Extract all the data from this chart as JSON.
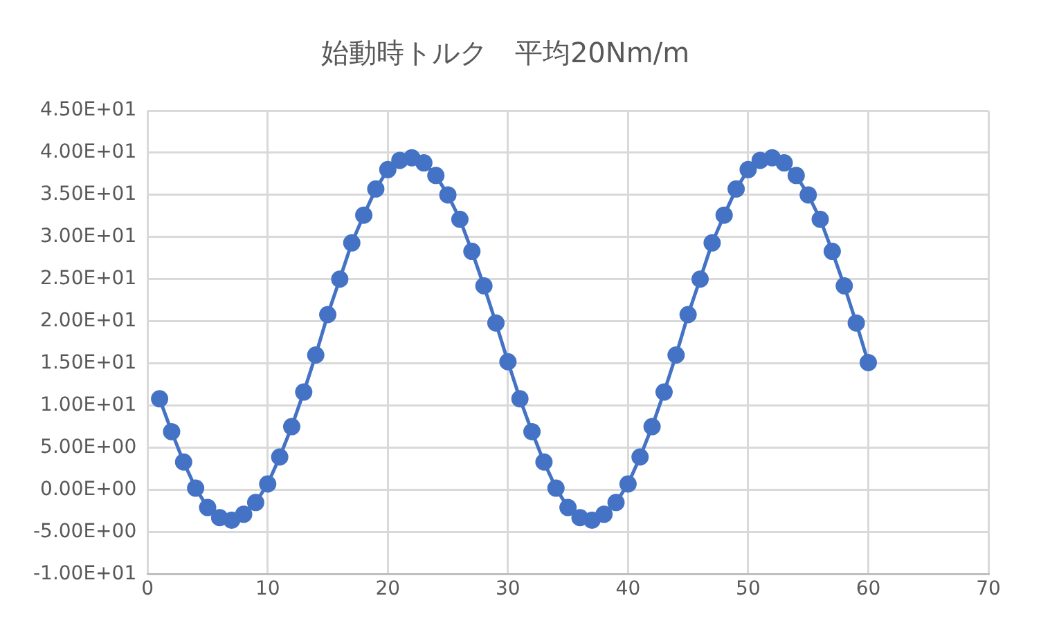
{
  "chart_data": {
    "type": "line",
    "title": "始動時トルク　平均20Nm/m",
    "x": [
      1,
      2,
      3,
      4,
      5,
      6,
      7,
      8,
      9,
      10,
      11,
      12,
      13,
      14,
      15,
      16,
      17,
      18,
      19,
      20,
      21,
      22,
      23,
      24,
      25,
      26,
      27,
      28,
      29,
      30,
      31,
      32,
      33,
      34,
      35,
      36,
      37,
      38,
      39,
      40,
      41,
      42,
      43,
      44,
      45,
      46,
      47,
      48,
      49,
      50,
      51,
      52,
      53,
      54,
      55,
      56,
      57,
      58,
      59,
      60
    ],
    "series": [
      {
        "color": "#4472c4",
        "values": [
          10.8,
          6.9,
          3.3,
          0.2,
          -2.1,
          -3.3,
          -3.6,
          -2.9,
          -1.5,
          0.7,
          3.9,
          7.5,
          11.6,
          16.0,
          20.8,
          25.0,
          29.3,
          32.6,
          35.7,
          38.0,
          39.1,
          39.4,
          38.8,
          37.3,
          35.0,
          32.1,
          28.3,
          24.2,
          19.8,
          15.2,
          10.8,
          6.9,
          3.3,
          0.2,
          -2.1,
          -3.3,
          -3.6,
          -2.9,
          -1.5,
          0.7,
          3.9,
          7.5,
          11.6,
          16.0,
          20.8,
          25.0,
          29.3,
          32.6,
          35.7,
          38.0,
          39.1,
          39.4,
          38.8,
          37.3,
          35.0,
          32.1,
          28.3,
          24.2,
          19.8,
          15.1
        ]
      }
    ],
    "xlim": [
      0,
      70
    ],
    "xticks": [
      0,
      10,
      20,
      30,
      40,
      50,
      60,
      70
    ],
    "ylim": [
      -10,
      45
    ],
    "yticks": [
      {
        "value": -10,
        "label": "-1.00E+01"
      },
      {
        "value": -5,
        "label": "-5.00E+00"
      },
      {
        "value": 0,
        "label": "0.00E+00"
      },
      {
        "value": 5,
        "label": "5.00E+00"
      },
      {
        "value": 10,
        "label": "1.00E+01"
      },
      {
        "value": 15,
        "label": "1.50E+01"
      },
      {
        "value": 20,
        "label": "2.00E+01"
      },
      {
        "value": 25,
        "label": "2.50E+01"
      },
      {
        "value": 30,
        "label": "3.00E+01"
      },
      {
        "value": 35,
        "label": "3.50E+01"
      },
      {
        "value": 40,
        "label": "4.00E+01"
      },
      {
        "value": 45,
        "label": "4.50E+01"
      }
    ],
    "grid": true,
    "marker": "circle",
    "legend": false
  }
}
